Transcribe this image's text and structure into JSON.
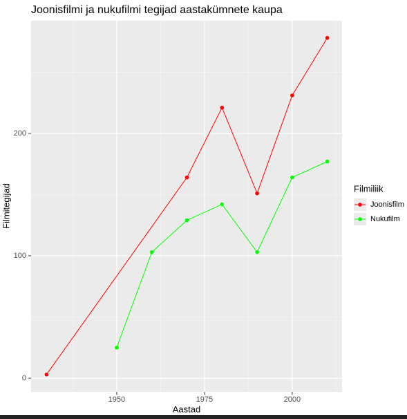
{
  "chart_data": {
    "type": "line",
    "title": "Joonisfilmi ja nukufilmi tegijad aastakümnete kaupa",
    "x_label": "Aastad",
    "y_label": "Filmitegijad",
    "legend_title": "Filmiliik",
    "legend": "right",
    "series": [
      {
        "name": "Joonisfilm",
        "color": "#ff0000",
        "x": [
          1930,
          1970,
          1980,
          1990,
          2000,
          2010
        ],
        "values": [
          3,
          164,
          221,
          151,
          231,
          278
        ]
      },
      {
        "name": "Nukufilm",
        "color": "#00ff00",
        "x": [
          1950,
          1960,
          1970,
          1980,
          1990,
          2000,
          2010
        ],
        "values": [
          25,
          103,
          129,
          142,
          103,
          164,
          177
        ]
      }
    ],
    "xlim": [
      1925.6,
      2014.2
    ],
    "xticks": [
      1950,
      1975,
      2000
    ],
    "x_minor_ticks": [
      1937.5,
      1962.5,
      1987.5,
      2012.5
    ],
    "ylim": [
      -11.3,
      292
    ],
    "yticks": [
      0,
      100,
      200
    ],
    "y_minor_ticks": [
      50,
      150,
      250
    ],
    "grid": true
  }
}
